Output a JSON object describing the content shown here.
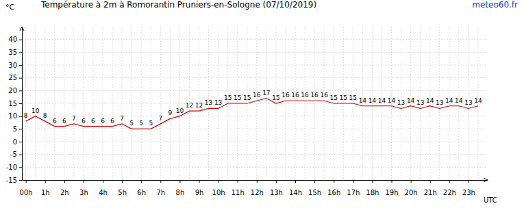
{
  "chart_data": {
    "type": "line",
    "title": "Température à 2m à Romorantin Pruniers-en-Sologne (07/10/2019)",
    "source": "meteo60.fr",
    "y_label": "°C",
    "x_label": "UTC",
    "x": [
      0,
      0.5,
      1,
      1.5,
      2,
      2.5,
      3,
      3.5,
      4,
      4.5,
      5,
      5.5,
      6,
      6.5,
      7,
      7.5,
      8,
      8.5,
      9,
      9.5,
      10,
      10.5,
      11,
      11.5,
      12,
      12.5,
      13,
      13.5,
      14,
      14.5,
      15,
      15.5,
      16,
      16.5,
      17,
      17.5,
      18,
      18.5,
      19,
      19.5,
      20,
      20.5,
      21,
      21.5,
      22,
      22.5,
      23,
      23.5
    ],
    "values": [
      8,
      10,
      8,
      6,
      6,
      7,
      6,
      6,
      6,
      6,
      7,
      5,
      5,
      5,
      7,
      9,
      10,
      12,
      12,
      13,
      13,
      15,
      15,
      15,
      16,
      17,
      15,
      16,
      16,
      16,
      16,
      16,
      15,
      15,
      15,
      14,
      14,
      14,
      14,
      13,
      14,
      13,
      14,
      13,
      14,
      14,
      13,
      14
    ],
    "color": "#cc0000",
    "data_labels": true,
    "grid": true,
    "xlim": [
      -0.2,
      24
    ],
    "xticks": [
      {
        "value": 0,
        "label": "00h"
      },
      {
        "value": 1,
        "label": "1h"
      },
      {
        "value": 2,
        "label": "2h"
      },
      {
        "value": 3,
        "label": "3h"
      },
      {
        "value": 4,
        "label": "4h"
      },
      {
        "value": 5,
        "label": "5h"
      },
      {
        "value": 6,
        "label": "6h"
      },
      {
        "value": 7,
        "label": "7h"
      },
      {
        "value": 8,
        "label": "8h"
      },
      {
        "value": 9,
        "label": "9h"
      },
      {
        "value": 10,
        "label": "10h"
      },
      {
        "value": 11,
        "label": "11h"
      },
      {
        "value": 12,
        "label": "12h"
      },
      {
        "value": 13,
        "label": "13h"
      },
      {
        "value": 14,
        "label": "14h"
      },
      {
        "value": 15,
        "label": "15h"
      },
      {
        "value": 16,
        "label": "16h"
      },
      {
        "value": 17,
        "label": "17h"
      },
      {
        "value": 18,
        "label": "18h"
      },
      {
        "value": 19,
        "label": "19h"
      },
      {
        "value": 20,
        "label": "20h"
      },
      {
        "value": 21,
        "label": "21h"
      },
      {
        "value": 22,
        "label": "22h"
      },
      {
        "value": 23,
        "label": "23h"
      }
    ],
    "ylim": [
      -15,
      45
    ],
    "yticks": [
      -15,
      -10,
      -5,
      0,
      5,
      10,
      15,
      20,
      25,
      30,
      35,
      40
    ]
  }
}
